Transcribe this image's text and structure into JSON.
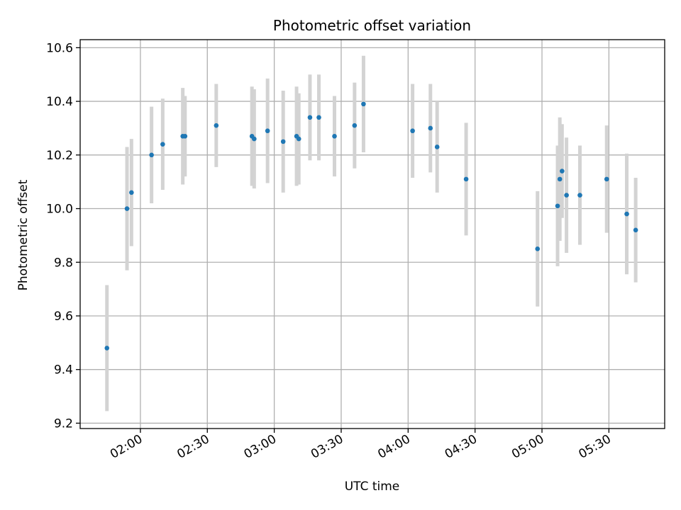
{
  "chart_data": {
    "type": "scatter",
    "title": "Photometric offset variation",
    "xlabel": "UTC time",
    "ylabel": "Photometric offset",
    "x_axis": "time",
    "xlim": [
      "01:33",
      "05:55"
    ],
    "ylim": [
      9.18,
      10.63
    ],
    "x_ticks": [
      "02:00",
      "02:30",
      "03:00",
      "03:30",
      "04:00",
      "04:30",
      "05:00",
      "05:30"
    ],
    "y_ticks": [
      9.2,
      9.4,
      9.6,
      9.8,
      10.0,
      10.2,
      10.4,
      10.6
    ],
    "y_tick_labels": [
      "9.2",
      "9.4",
      "9.6",
      "9.8",
      "10.0",
      "10.2",
      "10.4",
      "10.6"
    ],
    "grid": true,
    "legend": false,
    "colors": {
      "points": "#1f77b4",
      "error_bars": "#d3d3d3",
      "grid": "#b0b0b0"
    },
    "series": [
      {
        "points": [
          {
            "x": "01:45",
            "y": 9.48,
            "err": 0.235
          },
          {
            "x": "01:54",
            "y": 10.0,
            "err": 0.23
          },
          {
            "x": "01:56",
            "y": 10.06,
            "err": 0.2
          },
          {
            "x": "02:05",
            "y": 10.2,
            "err": 0.18
          },
          {
            "x": "02:10",
            "y": 10.24,
            "err": 0.17
          },
          {
            "x": "02:19",
            "y": 10.27,
            "err": 0.18
          },
          {
            "x": "02:20",
            "y": 10.27,
            "err": 0.15
          },
          {
            "x": "02:34",
            "y": 10.31,
            "err": 0.155
          },
          {
            "x": "02:50",
            "y": 10.27,
            "err": 0.185
          },
          {
            "x": "02:51",
            "y": 10.26,
            "err": 0.185
          },
          {
            "x": "02:57",
            "y": 10.29,
            "err": 0.195
          },
          {
            "x": "03:04",
            "y": 10.25,
            "err": 0.19
          },
          {
            "x": "03:10",
            "y": 10.27,
            "err": 0.185
          },
          {
            "x": "03:11",
            "y": 10.26,
            "err": 0.17
          },
          {
            "x": "03:16",
            "y": 10.34,
            "err": 0.16
          },
          {
            "x": "03:20",
            "y": 10.34,
            "err": 0.16
          },
          {
            "x": "03:27",
            "y": 10.27,
            "err": 0.15
          },
          {
            "x": "03:36",
            "y": 10.31,
            "err": 0.16
          },
          {
            "x": "03:40",
            "y": 10.39,
            "err": 0.18
          },
          {
            "x": "04:02",
            "y": 10.29,
            "err": 0.175
          },
          {
            "x": "04:10",
            "y": 10.3,
            "err": 0.165
          },
          {
            "x": "04:13",
            "y": 10.23,
            "err": 0.17
          },
          {
            "x": "04:26",
            "y": 10.11,
            "err": 0.21
          },
          {
            "x": "04:58",
            "y": 9.85,
            "err": 0.215
          },
          {
            "x": "05:07",
            "y": 10.01,
            "err": 0.225
          },
          {
            "x": "05:08",
            "y": 10.11,
            "err": 0.23
          },
          {
            "x": "05:09",
            "y": 10.14,
            "err": 0.175
          },
          {
            "x": "05:11",
            "y": 10.05,
            "err": 0.215
          },
          {
            "x": "05:17",
            "y": 10.05,
            "err": 0.185
          },
          {
            "x": "05:29",
            "y": 10.11,
            "err": 0.2
          },
          {
            "x": "05:38",
            "y": 9.98,
            "err": 0.225
          },
          {
            "x": "05:42",
            "y": 9.92,
            "err": 0.195
          }
        ]
      }
    ]
  }
}
